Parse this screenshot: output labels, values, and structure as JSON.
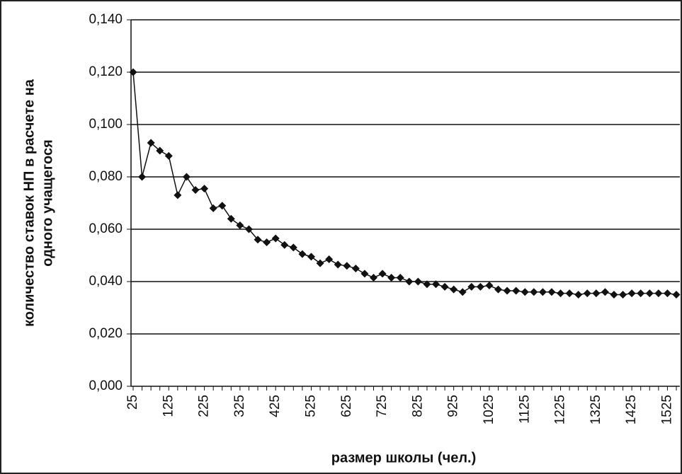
{
  "chart_data": {
    "type": "line",
    "y_label": [
      "количество ставок НП в расчете на",
      "одного учащегося"
    ],
    "x_label": "размер школы (чел.)",
    "categories": [
      "25",
      null,
      null,
      null,
      "125",
      null,
      null,
      null,
      "225",
      null,
      null,
      null,
      "325",
      null,
      null,
      null,
      "425",
      null,
      null,
      null,
      "525",
      null,
      null,
      null,
      "625",
      null,
      null,
      null,
      "725",
      null,
      null,
      null,
      "825",
      null,
      null,
      null,
      "925",
      null,
      null,
      null,
      "1025",
      null,
      null,
      null,
      "1125",
      null,
      null,
      null,
      "1225",
      null,
      null,
      null,
      "1325",
      null,
      null,
      null,
      "1425",
      null,
      null,
      null,
      "1525",
      null
    ],
    "values": [
      0.12,
      0.08,
      0.093,
      0.09,
      0.088,
      0.073,
      0.08,
      0.075,
      0.0755,
      0.068,
      0.069,
      0.064,
      0.0615,
      0.06,
      0.056,
      0.055,
      0.0565,
      0.054,
      0.053,
      0.0505,
      0.0495,
      0.047,
      0.0485,
      0.0465,
      0.046,
      0.045,
      0.043,
      0.0415,
      0.043,
      0.0415,
      0.0415,
      0.04,
      0.04,
      0.039,
      0.039,
      0.038,
      0.037,
      0.036,
      0.038,
      0.038,
      0.0385,
      0.037,
      0.0365,
      0.0365,
      0.036,
      0.036,
      0.036,
      0.036,
      0.0355,
      0.0355,
      0.035,
      0.0355,
      0.0355,
      0.036,
      0.035,
      0.035,
      0.0355,
      0.0355,
      0.0355,
      0.0355,
      0.0355,
      0.035
    ],
    "color": "#111111",
    "ylim": [
      0,
      0.14
    ],
    "yticks": [
      {
        "value": 0,
        "label": "0,000"
      },
      {
        "value": 0.02,
        "label": "0,020"
      },
      {
        "value": 0.04,
        "label": "0,040"
      },
      {
        "value": 0.06,
        "label": "0,060"
      },
      {
        "value": 0.08,
        "label": "0,080"
      },
      {
        "value": 0.1,
        "label": "0,100"
      },
      {
        "value": 0.12,
        "label": "0,120"
      },
      {
        "value": 0.14,
        "label": "0,140"
      }
    ],
    "grid": true
  }
}
